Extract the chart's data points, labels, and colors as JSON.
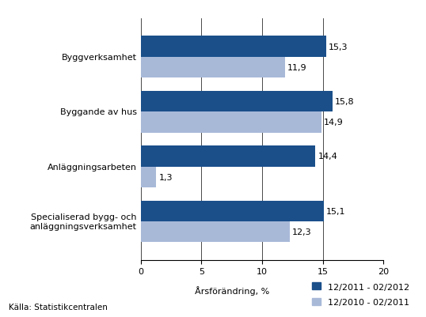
{
  "categories": [
    "Specialiserad bygg- och\nanläggningsverksamhet",
    "Anläggningsarbeten",
    "Byggande av hus",
    "Byggverksamhet"
  ],
  "series1_values": [
    15.1,
    14.4,
    15.8,
    15.3
  ],
  "series2_values": [
    12.3,
    1.3,
    14.9,
    11.9
  ],
  "series1_label": "12/2011 - 02/2012",
  "series2_label": "12/2010 - 02/2011",
  "series1_color": "#1A4F8A",
  "series2_color": "#A8B9D8",
  "series1_text": [
    "15,1",
    "14,4",
    "15,8",
    "15,3"
  ],
  "series2_text": [
    "12,3",
    "1,3",
    "14,9",
    "11,9"
  ],
  "xlabel": "Årsförändring, %",
  "source": "Källa: Statistikcentralen",
  "xlim": [
    0,
    20
  ],
  "xticks": [
    0,
    5,
    10,
    15,
    20
  ],
  "bar_height": 0.38,
  "tick_fontsize": 8,
  "label_fontsize": 8,
  "source_fontsize": 7.5,
  "background_color": "#FFFFFF"
}
